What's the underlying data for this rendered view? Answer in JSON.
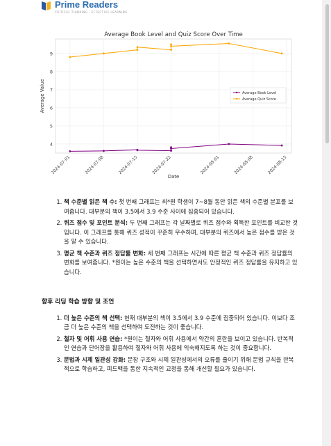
{
  "brand": {
    "name": "Prime Readers",
    "tagline": "CRITICAL THINKING · EFFECTIVE LEARNING"
  },
  "chart_data": {
    "type": "line",
    "title": "Average Book Level and Quiz Score Over Time",
    "xlabel": "Date",
    "ylabel": "Average Value",
    "ylim": [
      3.5,
      9.8
    ],
    "yticks": [
      4,
      5,
      6,
      7,
      8,
      9
    ],
    "xlim": [
      "2024-06-28",
      "2024-08-16"
    ],
    "xticks": [
      "2024-07-01",
      "2024-07-08",
      "2024-07-15",
      "2024-07-22",
      "2024-08-01",
      "2024-08-08",
      "2024-08-15"
    ],
    "grid": true,
    "legend_position": "right",
    "series": [
      {
        "name": "Average Book Level",
        "color": "#800080",
        "points": [
          [
            "2024-07-01",
            3.6
          ],
          [
            "2024-07-08",
            3.62
          ],
          [
            "2024-07-15",
            3.68
          ],
          [
            "2024-07-15",
            3.66
          ],
          [
            "2024-07-22",
            3.63
          ],
          [
            "2024-07-22",
            3.82
          ],
          [
            "2024-07-22",
            3.75
          ],
          [
            "2024-08-03",
            4.0
          ],
          [
            "2024-08-14",
            3.92
          ]
        ]
      },
      {
        "name": "Average Quiz Score",
        "color": "#ffa500",
        "points": [
          [
            "2024-07-01",
            8.8
          ],
          [
            "2024-07-08",
            9.0
          ],
          [
            "2024-07-15",
            9.2
          ],
          [
            "2024-07-15",
            9.35
          ],
          [
            "2024-07-22",
            9.2
          ],
          [
            "2024-07-22",
            9.5
          ],
          [
            "2024-07-22",
            9.4
          ],
          [
            "2024-08-03",
            9.55
          ],
          [
            "2024-08-14",
            9.0
          ]
        ]
      }
    ]
  },
  "analysis": [
    {
      "bold": "책 수준별 읽은 책 수:",
      "text": " 첫 번째 그래프는 최*원 학생이 7~8월 동안 읽은 책의 수준별 분포를 보여줍니다. 대부분의 책이 3.5에서 3.9 수준 사이에 집중되어 있습니다."
    },
    {
      "bold": "퀴즈 점수 및 포인트 분석:",
      "text": " 두 번째 그래프는 각 날짜별로 퀴즈 점수와 획득한 포인트를 비교한 것입니다. 이 그래프를 통해 퀴즈 성적이 꾸준히 우수하며, 대부분의 퀴즈에서 높은 점수를 받은 것을 알 수 있습니다."
    },
    {
      "bold": "평균 책 수준과 퀴즈 정답률 변화:",
      "text": " 세 번째 그래프는 시간에 따른 평균 책 수준과 퀴즈 정답률의 변화를 보여줍니다. *원이는 높은 수준의 책을 선택하면서도 안정적인 퀴즈 정답률을 유지하고 있습니다."
    }
  ],
  "advice_heading": "향후 리딩 학습 방향 및 조언",
  "advice": [
    {
      "bold": "더 높은 수준의 책 선택:",
      "text": " 현재 대부분의 책이 3.5에서 3.9 수준에 집중되어 있습니다. 이보다 조금 더 높은 수준의 책을 선택하여 도전하는 것이 좋습니다."
    },
    {
      "bold": "철자 및 어휘 사용 연습:",
      "text": " *원이는 철자와 어휘 사용에서 약간의 혼란을 보이고 있습니다. 반복적인 연습과 단어장을 활용하여 철자와 어휘 사용에 익숙해지도록 하는 것이 중요합니다."
    },
    {
      "bold": "문법과 시제 일관성 강화:",
      "text": " 문장 구조와 시제 일관성에서의 오류를 줄이기 위해 문법 규칙을 반복적으로 학습하고, 피드백을 통한 지속적인 교정을 통해 개선할 필요가 있습니다."
    }
  ]
}
